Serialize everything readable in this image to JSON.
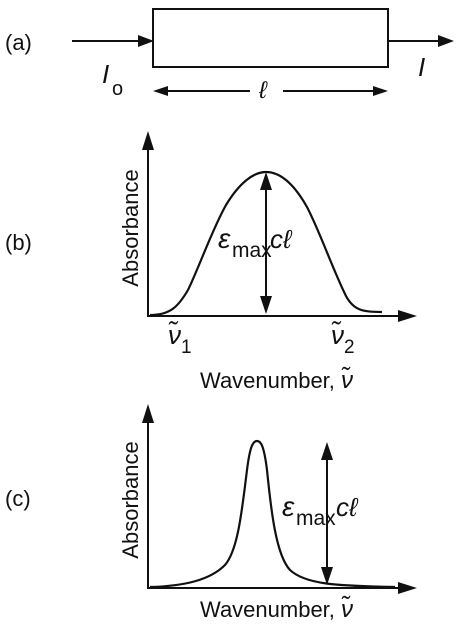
{
  "panel_a": {
    "label": "(a)",
    "incident": "I",
    "incident_sub": "o",
    "transmitted": "I",
    "length": "ℓ"
  },
  "panel_b": {
    "label": "(b)",
    "ylabel": "Absorbance",
    "peak_label": "ε",
    "peak_sub": "max",
    "peak_tail": "cℓ",
    "tick1": "ν̃",
    "tick1_sub": "1",
    "tick2": "ν̃",
    "tick2_sub": "2",
    "xlabel": "Wavenumber, ",
    "xlabel_symbol": "ν̃"
  },
  "panel_c": {
    "label": "(c)",
    "ylabel": "Absorbance",
    "peak_label": "ε",
    "peak_sub": "max",
    "peak_tail": "cℓ",
    "xlabel": "Wavenumber, ",
    "xlabel_symbol": "ν̃"
  }
}
